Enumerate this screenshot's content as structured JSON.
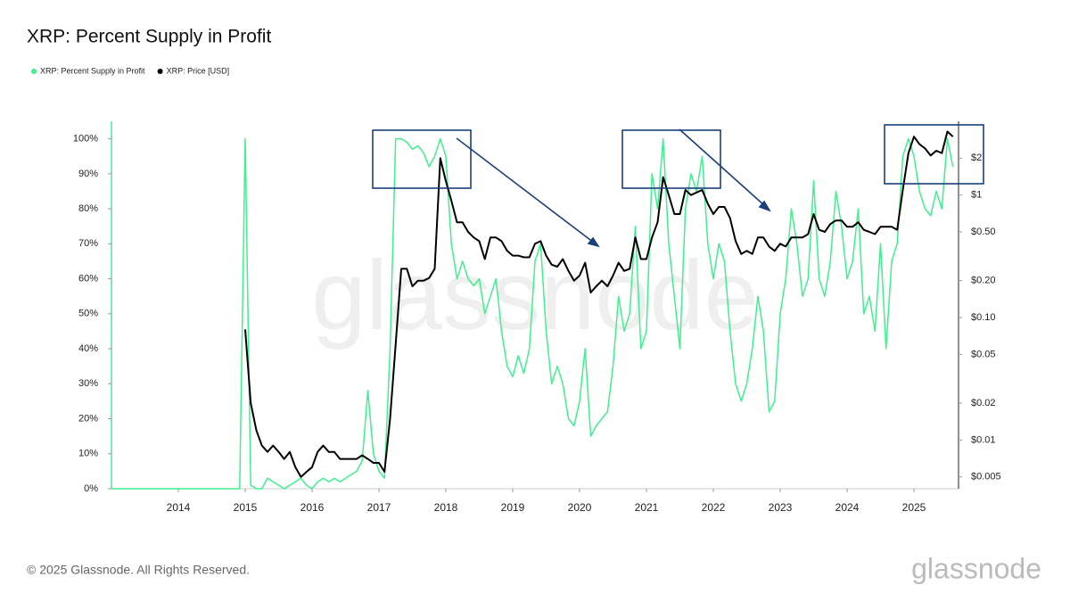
{
  "chart_data": {
    "type": "line",
    "title": "XRP: Percent Supply in Profit",
    "watermark": "glassnode",
    "x": [
      "2013-01",
      "2013-02",
      "2013-03",
      "2013-04",
      "2013-05",
      "2013-06",
      "2013-07",
      "2013-08",
      "2013-09",
      "2013-10",
      "2013-11",
      "2013-12",
      "2014-01",
      "2014-02",
      "2014-03",
      "2014-04",
      "2014-05",
      "2014-06",
      "2014-07",
      "2014-08",
      "2014-09",
      "2014-10",
      "2014-11",
      "2014-12",
      "2015-01",
      "2015-02",
      "2015-03",
      "2015-04",
      "2015-05",
      "2015-06",
      "2015-07",
      "2015-08",
      "2015-09",
      "2015-10",
      "2015-11",
      "2015-12",
      "2016-01",
      "2016-02",
      "2016-03",
      "2016-04",
      "2016-05",
      "2016-06",
      "2016-07",
      "2016-08",
      "2016-09",
      "2016-10",
      "2016-11",
      "2016-12",
      "2017-01",
      "2017-02",
      "2017-03",
      "2017-04",
      "2017-05",
      "2017-06",
      "2017-07",
      "2017-08",
      "2017-09",
      "2017-10",
      "2017-11",
      "2017-12",
      "2018-01",
      "2018-02",
      "2018-03",
      "2018-04",
      "2018-05",
      "2018-06",
      "2018-07",
      "2018-08",
      "2018-09",
      "2018-10",
      "2018-11",
      "2018-12",
      "2019-01",
      "2019-02",
      "2019-03",
      "2019-04",
      "2019-05",
      "2019-06",
      "2019-07",
      "2019-08",
      "2019-09",
      "2019-10",
      "2019-11",
      "2019-12",
      "2020-01",
      "2020-02",
      "2020-03",
      "2020-04",
      "2020-05",
      "2020-06",
      "2020-07",
      "2020-08",
      "2020-09",
      "2020-10",
      "2020-11",
      "2020-12",
      "2021-01",
      "2021-02",
      "2021-03",
      "2021-04",
      "2021-05",
      "2021-06",
      "2021-07",
      "2021-08",
      "2021-09",
      "2021-10",
      "2021-11",
      "2021-12",
      "2022-01",
      "2022-02",
      "2022-03",
      "2022-04",
      "2022-05",
      "2022-06",
      "2022-07",
      "2022-08",
      "2022-09",
      "2022-10",
      "2022-11",
      "2022-12",
      "2023-01",
      "2023-02",
      "2023-03",
      "2023-04",
      "2023-05",
      "2023-06",
      "2023-07",
      "2023-08",
      "2023-09",
      "2023-10",
      "2023-11",
      "2023-12",
      "2024-01",
      "2024-02",
      "2024-03",
      "2024-04",
      "2024-05",
      "2024-06",
      "2024-07",
      "2024-08",
      "2024-09",
      "2024-10",
      "2024-11",
      "2024-12",
      "2025-01",
      "2025-02",
      "2025-03",
      "2025-04",
      "2025-05",
      "2025-06",
      "2025-07",
      "2025-08"
    ],
    "series": [
      {
        "name": "XRP: Percent Supply in Profit",
        "color": "#3ef08e",
        "axis": "y",
        "values": [
          0,
          0,
          0,
          0,
          0,
          0,
          0,
          0,
          0,
          0,
          0,
          0,
          0,
          0,
          0,
          0,
          0,
          0,
          0,
          0,
          0,
          0,
          0,
          0,
          100,
          1,
          0,
          0,
          3,
          2,
          1,
          0,
          1,
          2,
          3,
          1,
          0,
          2,
          3,
          2,
          3,
          2,
          3,
          4,
          5,
          8,
          28,
          10,
          5,
          3,
          40,
          100,
          100,
          99,
          97,
          98,
          96,
          92,
          95,
          100,
          95,
          70,
          60,
          65,
          60,
          58,
          60,
          50,
          55,
          60,
          45,
          35,
          32,
          38,
          33,
          40,
          65,
          70,
          45,
          30,
          35,
          30,
          20,
          18,
          25,
          40,
          15,
          18,
          20,
          22,
          35,
          55,
          45,
          50,
          75,
          40,
          45,
          90,
          80,
          100,
          70,
          55,
          40,
          80,
          90,
          85,
          95,
          70,
          60,
          70,
          65,
          45,
          30,
          25,
          30,
          40,
          55,
          45,
          22,
          25,
          50,
          60,
          80,
          70,
          55,
          60,
          88,
          60,
          55,
          65,
          85,
          75,
          60,
          65,
          80,
          50,
          55,
          45,
          70,
          40,
          65,
          70,
          95,
          100,
          95,
          85,
          80,
          78,
          85,
          80,
          100,
          92
        ]
      },
      {
        "name": "XRP: Price [USD]",
        "color": "#000000",
        "axis": "y2",
        "values": [
          null,
          null,
          null,
          null,
          null,
          null,
          null,
          null,
          null,
          null,
          null,
          null,
          null,
          null,
          null,
          null,
          null,
          null,
          null,
          null,
          null,
          null,
          null,
          null,
          0.08,
          0.02,
          0.012,
          0.009,
          0.008,
          0.009,
          0.008,
          0.007,
          0.008,
          0.006,
          0.005,
          0.0055,
          0.006,
          0.008,
          0.009,
          0.008,
          0.008,
          0.007,
          0.007,
          0.007,
          0.007,
          0.0075,
          0.007,
          0.0065,
          0.0065,
          0.0055,
          0.015,
          0.06,
          0.25,
          0.25,
          0.18,
          0.2,
          0.2,
          0.21,
          0.25,
          2.0,
          1.3,
          0.9,
          0.6,
          0.6,
          0.5,
          0.45,
          0.42,
          0.3,
          0.45,
          0.45,
          0.42,
          0.35,
          0.32,
          0.32,
          0.31,
          0.31,
          0.4,
          0.42,
          0.32,
          0.27,
          0.26,
          0.3,
          0.24,
          0.2,
          0.22,
          0.28,
          0.16,
          0.18,
          0.2,
          0.18,
          0.22,
          0.28,
          0.24,
          0.25,
          0.45,
          0.3,
          0.3,
          0.45,
          0.6,
          1.4,
          1.0,
          0.7,
          0.7,
          1.1,
          1.0,
          1.05,
          1.1,
          0.85,
          0.7,
          0.8,
          0.8,
          0.65,
          0.42,
          0.33,
          0.35,
          0.33,
          0.45,
          0.45,
          0.38,
          0.35,
          0.4,
          0.38,
          0.45,
          0.45,
          0.45,
          0.48,
          0.7,
          0.52,
          0.5,
          0.58,
          0.62,
          0.62,
          0.55,
          0.55,
          0.6,
          0.52,
          0.5,
          0.48,
          0.55,
          0.55,
          0.55,
          0.52,
          1.1,
          2.2,
          3.0,
          2.6,
          2.4,
          2.1,
          2.3,
          2.2,
          3.3,
          3.0
        ]
      }
    ],
    "xlim": [
      "2013-01",
      "2025-09"
    ],
    "xticks": [
      2014,
      2015,
      2016,
      2017,
      2018,
      2019,
      2020,
      2021,
      2022,
      2023,
      2024,
      2025
    ],
    "ylim": [
      0,
      105
    ],
    "yticks": [
      {
        "value": 0,
        "label": "0%"
      },
      {
        "value": 10,
        "label": "10%"
      },
      {
        "value": 20,
        "label": "20%"
      },
      {
        "value": 30,
        "label": "30%"
      },
      {
        "value": 40,
        "label": "40%"
      },
      {
        "value": 50,
        "label": "50%"
      },
      {
        "value": 60,
        "label": "60%"
      },
      {
        "value": 70,
        "label": "70%"
      },
      {
        "value": 80,
        "label": "80%"
      },
      {
        "value": 90,
        "label": "90%"
      },
      {
        "value": 100,
        "label": "100%"
      }
    ],
    "y2lim": [
      0.004,
      4
    ],
    "y2scale": "log",
    "y2ticks": [
      {
        "value": 0.005,
        "label": "$0.005"
      },
      {
        "value": 0.01,
        "label": "$0.01"
      },
      {
        "value": 0.02,
        "label": "$0.02"
      },
      {
        "value": 0.05,
        "label": "$0.05"
      },
      {
        "value": 0.1,
        "label": "$0.10"
      },
      {
        "value": 0.2,
        "label": "$0.20"
      },
      {
        "value": 0.5,
        "label": "$0.50"
      },
      {
        "value": 1,
        "label": "$1"
      },
      {
        "value": 2,
        "label": "$2"
      }
    ],
    "grid": false,
    "legend": "top-left"
  },
  "footer": {
    "copyright": "© 2025 Glassnode. All Rights Reserved.",
    "logo": "glassnode"
  }
}
